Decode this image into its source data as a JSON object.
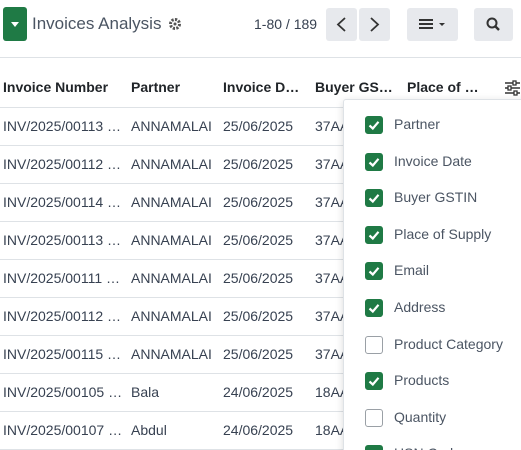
{
  "header": {
    "title": "Invoices Analysis",
    "pager": "1-80 / 189"
  },
  "table": {
    "columns": [
      "Invoice Number",
      "Partner",
      "Invoice D…",
      "Buyer GS…",
      "Place of …"
    ],
    "rows": [
      [
        "INV/2025/00113 …",
        "ANNAMALAI",
        "25/06/2025",
        "37AA"
      ],
      [
        "INV/2025/00112 …",
        "ANNAMALAI",
        "25/06/2025",
        "37AA"
      ],
      [
        "INV/2025/00114 …",
        "ANNAMALAI",
        "25/06/2025",
        "37AA"
      ],
      [
        "INV/2025/00113 …",
        "ANNAMALAI",
        "25/06/2025",
        "37AA"
      ],
      [
        "INV/2025/00111 …",
        "ANNAMALAI",
        "25/06/2025",
        "37AA"
      ],
      [
        "INV/2025/00112 …",
        "ANNAMALAI",
        "25/06/2025",
        "37AA"
      ],
      [
        "INV/2025/00115 …",
        "ANNAMALAI",
        "25/06/2025",
        "37AA"
      ],
      [
        "INV/2025/00105 …",
        "Bala",
        "24/06/2025",
        "18AA"
      ],
      [
        "INV/2025/00107 …",
        "Abdul",
        "24/06/2025",
        "18AA"
      ]
    ]
  },
  "column_menu": {
    "options": [
      {
        "label": "Partner",
        "checked": true
      },
      {
        "label": "Invoice Date",
        "checked": true
      },
      {
        "label": "Buyer GSTIN",
        "checked": true
      },
      {
        "label": "Place of Supply",
        "checked": true
      },
      {
        "label": "Email",
        "checked": true
      },
      {
        "label": "Address",
        "checked": true
      },
      {
        "label": "Product Category",
        "checked": false
      },
      {
        "label": "Products",
        "checked": true
      },
      {
        "label": "Quantity",
        "checked": false
      },
      {
        "label": "HSN Code",
        "checked": true
      }
    ]
  }
}
